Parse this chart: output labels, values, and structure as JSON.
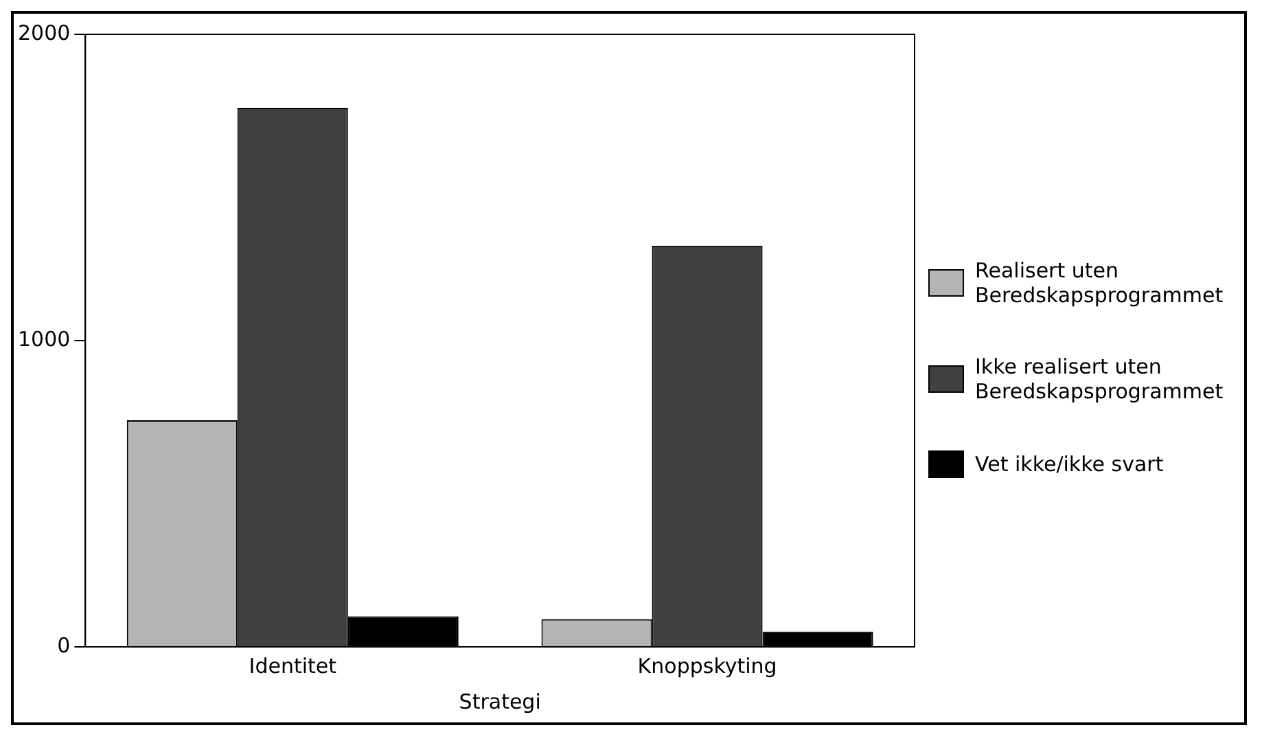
{
  "chart_data": {
    "type": "bar",
    "xlabel": "Strategi",
    "categories": [
      "Identitet",
      "Knoppskyting"
    ],
    "series": [
      {
        "name": "Realisert uten Beredskapsprogrammet",
        "color": "#b4b4b4",
        "values": [
          740,
          90
        ]
      },
      {
        "name": "Ikke realisert uten Beredskapsprogrammet",
        "color": "#404040",
        "values": [
          1760,
          1310
        ]
      },
      {
        "name": "Vet ikke/ikke svart",
        "color": "#000000",
        "values": [
          100,
          50
        ]
      }
    ],
    "ylim": [
      0,
      2000
    ],
    "yticks": [
      0,
      1000,
      2000
    ],
    "grid": false,
    "legend": "right"
  }
}
